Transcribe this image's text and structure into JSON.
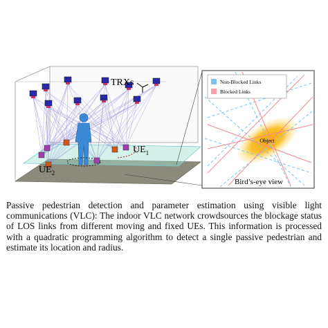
{
  "figure": {
    "labels": {
      "trx": "TRXs",
      "ue1": {
        "text": "UE",
        "subscript": "1"
      },
      "ue2": {
        "text": "UE",
        "subscript": "2"
      }
    },
    "inset": {
      "legend": [
        "Non-Blocked Links",
        "Blocked Links"
      ],
      "object": "Object",
      "title": "Bird’s-eye view"
    }
  },
  "caption": "Passive pedestrian detection and parameter estimation using visible light communications (VLC): The indoor VLC network crowdsources the blockage status of LOS links from different moving and fixed UEs. This information is processed with a quadratic programming algorithm to detect a single passive pedestrian and estimate its location and radius."
}
